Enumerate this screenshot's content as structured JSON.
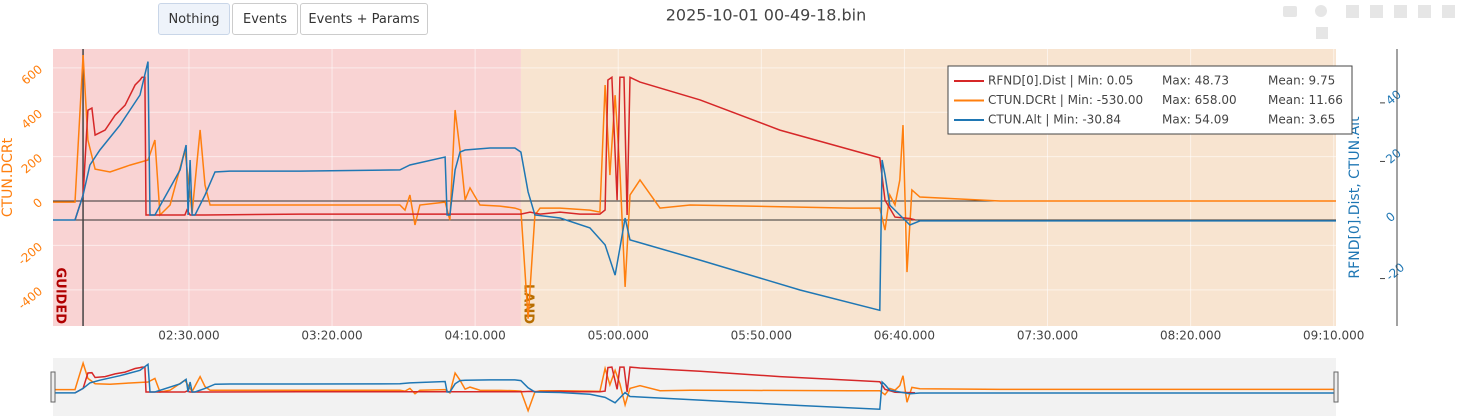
{
  "buttons": [
    "Nothing",
    "Events",
    "Events + Params"
  ],
  "chart_data": {
    "type": "line",
    "title": "2025-10-01 00-49-18.bin",
    "ylabel": "CTUN.DCRt",
    "y2label": "RFND[0].Dist, CTUN.Alt",
    "xlim": [
      102.5,
      550.8
    ],
    "xticks": [
      {
        "value": 150,
        "label": "02:30.000"
      },
      {
        "value": 200,
        "label": "03:20.000"
      },
      {
        "value": 250,
        "label": "04:10.000"
      },
      {
        "value": 300,
        "label": "05:00.000"
      },
      {
        "value": 350,
        "label": "05:50.000"
      },
      {
        "value": 400,
        "label": "06:40.000"
      },
      {
        "value": 450,
        "label": "07:30.000"
      },
      {
        "value": 500,
        "label": "08:20.000"
      },
      {
        "value": 550,
        "label": "09:10.000"
      }
    ],
    "ylim": [
      -563,
      685
    ],
    "yticks": [
      -400,
      -200,
      0,
      200,
      400,
      600
    ],
    "y2lim": [
      -36.2,
      58.4
    ],
    "y2ticks": [
      -20,
      0,
      20,
      40
    ],
    "grid": true,
    "legend_position": "top-right",
    "modes": [
      {
        "label": "GUIDED",
        "start": 102.5,
        "end": 266,
        "color": "#f9d3d3",
        "text_color": "#b00000"
      },
      {
        "label": "LAND",
        "start": 266,
        "end": 550.8,
        "color": "#f8e4d0",
        "text_color": "#b86e00"
      }
    ],
    "event_lines": [
      113
    ],
    "series": [
      {
        "legend": [
          "RFND[0].Dist | Min: 0.05",
          "Max: 48.73",
          "Mean: 9.75"
        ],
        "color": "#d62728",
        "axis": "y2",
        "x": [
          110.2,
          113,
          114.7,
          116.1,
          117.2,
          120.7,
          124.2,
          127.7,
          131.2,
          132.9,
          133.6,
          134.6,
          135,
          148.6,
          149.3,
          150.4,
          155.6,
          188.8,
          223.7,
          239.5,
          240.2,
          243,
          244.7,
          266,
          269.2,
          272.7,
          279.7,
          286.6,
          293.6,
          295.4,
          296.4,
          297.8,
          299.6,
          300.6,
          302,
          303.1,
          304.1,
          307.6,
          328.6,
          356.5,
          391.4,
          393.2,
          396.7,
          401.9,
          403.7
        ],
        "values": [
          0,
          8.5,
          37.5,
          38.2,
          29,
          30.7,
          35.8,
          39.2,
          46.1,
          47.8,
          48.73,
          48.73,
          1.7,
          1.7,
          3.4,
          1.7,
          1.7,
          2,
          2,
          2,
          2,
          2,
          2,
          2,
          2.7,
          2,
          2.7,
          2,
          2,
          3.4,
          47.8,
          48.73,
          6.8,
          48.73,
          48.73,
          1.7,
          48.73,
          47.1,
          41,
          30.7,
          21.2,
          6.8,
          1,
          0.5,
          0.05
        ]
      },
      {
        "legend": [
          "CTUN.DCRt | Min: -530.00",
          "Max: 658.00",
          "Mean: 11.66"
        ],
        "color": "#ff7f0e",
        "axis": "y",
        "x": [
          102.5,
          110.2,
          113,
          114.7,
          117.2,
          122.4,
          129.4,
          135.7,
          138.1,
          139.9,
          143.4,
          148.6,
          151.1,
          153.9,
          155.6,
          157.4,
          162.6,
          223.7,
          225.5,
          227.2,
          229,
          230.7,
          239.5,
          241.2,
          243,
          244.7,
          246.5,
          248.2,
          251.7,
          258.7,
          263.9,
          266,
          268.5,
          270.9,
          272.7,
          279.7,
          290.1,
          293.6,
          295.4,
          297.1,
          298.9,
          300.6,
          302.4,
          304.1,
          307.6,
          314.6,
          325.1,
          346,
          381,
          391.4,
          393.2,
          394.9,
          396.7,
          398.4,
          399.5,
          400.9,
          402.6,
          405.4,
          433.4,
          550.8
        ],
        "values": [
          -5,
          -5,
          658,
          275,
          144,
          131,
          162,
          185,
          275,
          -63,
          -18,
          230,
          -54,
          320,
          72,
          -18,
          -18,
          -18,
          -41,
          27,
          -108,
          -18,
          -5,
          -86,
          410,
          230,
          5,
          59,
          -18,
          -23,
          -32,
          -41,
          -530,
          -63,
          -32,
          -32,
          -41,
          -50,
          523,
          117,
          477,
          140,
          -387,
          27,
          95,
          -32,
          -18,
          -23,
          -32,
          -32,
          -131,
          27,
          -18,
          95,
          342,
          -320,
          50,
          18,
          0,
          0
        ]
      },
      {
        "legend": [
          "CTUN.Alt | Min: -30.84",
          "Max: 54.09",
          "Mean: 3.65"
        ],
        "color": "#1f77b4",
        "axis": "y2",
        "x": [
          102.5,
          110.2,
          113,
          115.4,
          118.9,
          125.9,
          132.9,
          135.7,
          136.4,
          138.1,
          146.9,
          149,
          149.7,
          150.4,
          151.1,
          152.1,
          155.6,
          159.1,
          164.3,
          188.8,
          223.7,
          227.2,
          239.5,
          240.2,
          241.2,
          243,
          244.7,
          246.5,
          255.2,
          263.9,
          266,
          268.5,
          270.9,
          279.7,
          290.1,
          295.4,
          298.9,
          300.6,
          302.4,
          304.1,
          328.6,
          363.5,
          391.4,
          392.2,
          393.2,
          394.9,
          398.4,
          401.9,
          405.4,
          550.8
        ],
        "values": [
          0,
          0,
          8.5,
          18.8,
          23.9,
          32.4,
          42.7,
          54.09,
          1.7,
          1.7,
          17.1,
          25.6,
          1.7,
          20.5,
          1.7,
          1.7,
          8.5,
          16.4,
          16.7,
          16.7,
          17.1,
          18.8,
          21.5,
          1.7,
          1.7,
          17.1,
          23.2,
          23.9,
          24.6,
          24.6,
          23.2,
          9.6,
          1.7,
          0.7,
          -2.7,
          -8.5,
          -18.8,
          -9.6,
          0.7,
          -6.8,
          -13.7,
          -23.9,
          -30.84,
          20.5,
          15.4,
          5.1,
          1.7,
          -1.7,
          -0.3,
          -0.3
        ]
      }
    ]
  }
}
